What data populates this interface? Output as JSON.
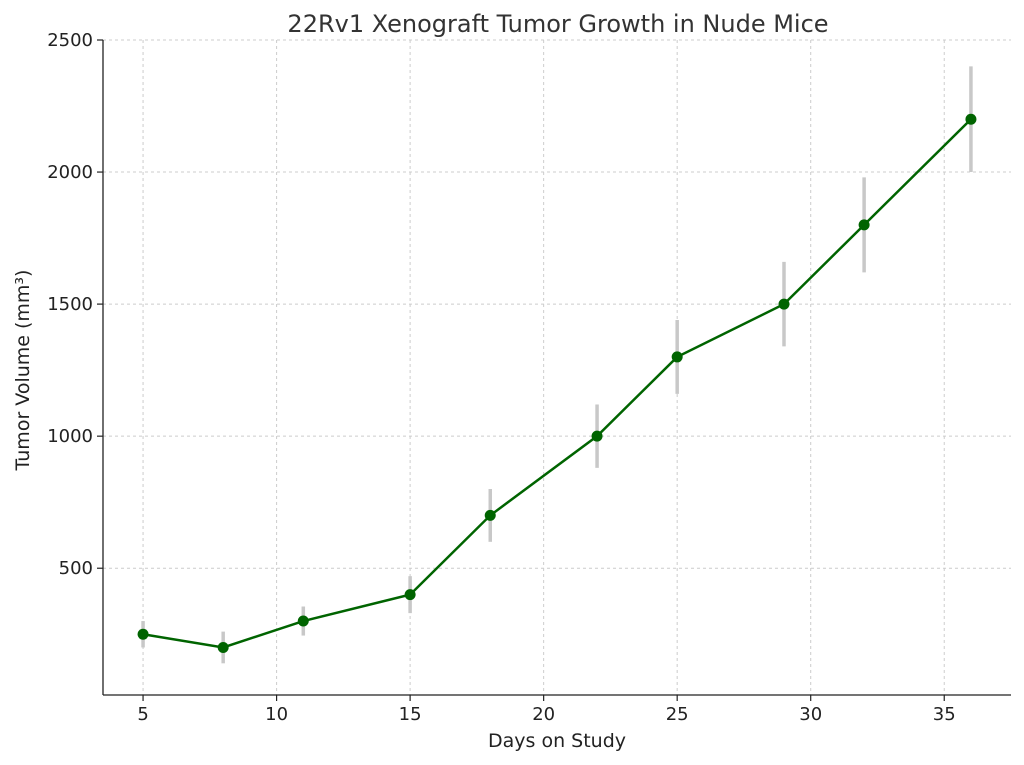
{
  "chart_data": {
    "type": "line",
    "title": "22Rv1 Xenograft Tumor Growth in Nude Mice",
    "xlabel": "Days on Study",
    "ylabel": "Tumor Volume (mm³)",
    "x": [
      5,
      8,
      11,
      15,
      18,
      22,
      25,
      29,
      32,
      36
    ],
    "series": [
      {
        "name": "",
        "values": [
          250,
          200,
          300,
          400,
          700,
          1000,
          1300,
          1500,
          1800,
          2200
        ],
        "errors": [
          50,
          60,
          55,
          70,
          100,
          120,
          140,
          160,
          180,
          200
        ]
      }
    ],
    "xticks": [
      "5",
      "10",
      "15",
      "20",
      "25",
      "30",
      "35"
    ],
    "yticks": [
      "500",
      "1000",
      "1500",
      "2000",
      "2500"
    ],
    "xlim": [
      3.5,
      37.5
    ],
    "ylim": [
      20,
      2500
    ],
    "grid": true,
    "colors": {
      "line": "#006400",
      "marker": "#006400",
      "error_bar": "#c8c8c8"
    }
  }
}
